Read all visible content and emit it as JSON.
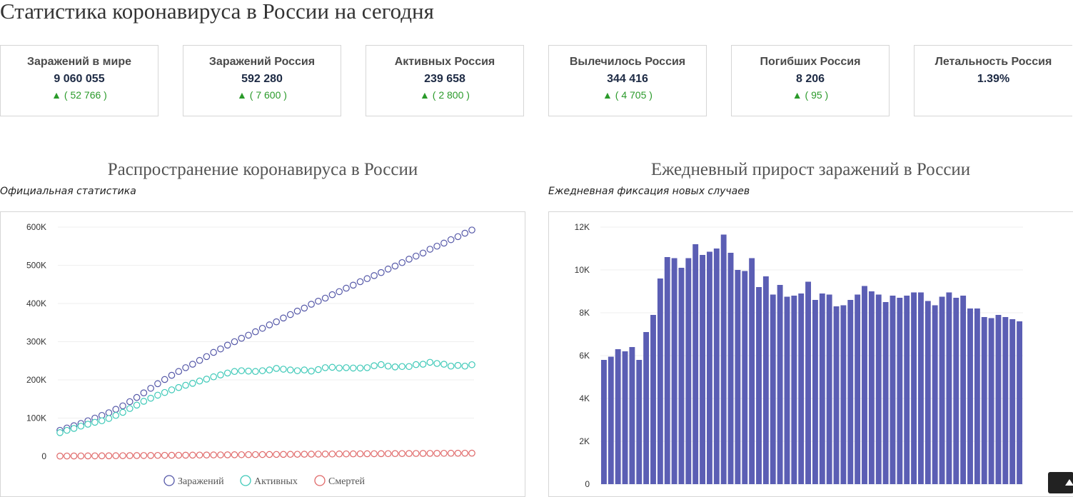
{
  "page": {
    "title": "Статистика коронавируса в России на сегодня"
  },
  "stats": [
    {
      "label": "Заражений в мире",
      "value": "9 060 055",
      "delta": "▲ ( 52 766 )"
    },
    {
      "label": "Заражений Россия",
      "value": "592 280",
      "delta": "▲ ( 7 600 )"
    },
    {
      "label": "Активных Россия",
      "value": "239 658",
      "delta": "▲ ( 2 800 )"
    },
    {
      "label": "Вылечилось Россия",
      "value": "344 416",
      "delta": "▲ ( 4 705 )"
    },
    {
      "label": "Погибших Россия",
      "value": "8 206",
      "delta": "▲ ( 95 )"
    },
    {
      "label": "Летальность Россия",
      "value": "1.39%",
      "delta": ""
    }
  ],
  "charts": {
    "spread": {
      "title": "Распространение коронавируса в России",
      "subtitle": "Официальная статистика"
    },
    "daily": {
      "title": "Ежедневный прирост заражений в России",
      "subtitle": "Ежедневная фиксация новых случаев"
    }
  },
  "chart_data": [
    {
      "type": "scatter",
      "title": "Распространение коронавируса в России",
      "subtitle": "Официальная статистика",
      "ylim": [
        0,
        600000
      ],
      "yticks": [
        0,
        100000,
        200000,
        300000,
        400000,
        500000,
        600000
      ],
      "ytick_labels": [
        "0",
        "100K",
        "200K",
        "300K",
        "400K",
        "500K",
        "600K"
      ],
      "grid": true,
      "legend_position": "bottom",
      "series": [
        {
          "name": "Заражений",
          "color": "#5558a8",
          "values": [
            68000,
            74000,
            80000,
            86000,
            93000,
            100000,
            107000,
            114000,
            123000,
            132000,
            143000,
            154000,
            166000,
            178000,
            190000,
            201000,
            212000,
            222000,
            232000,
            241000,
            251000,
            261000,
            272000,
            281000,
            291000,
            300000,
            309000,
            317000,
            326000,
            335000,
            344000,
            352000,
            362000,
            371000,
            380000,
            388000,
            398000,
            406000,
            414000,
            423000,
            431000,
            440000,
            448000,
            457000,
            465000,
            473000,
            481000,
            490000,
            498000,
            507000,
            516000,
            524000,
            532000,
            542000,
            550000,
            558000,
            567000,
            575000,
            584000,
            592280
          ]
        },
        {
          "name": "Активных",
          "color": "#3ec9b8",
          "values": [
            62000,
            68000,
            73000,
            79000,
            84000,
            89000,
            93000,
            99000,
            107000,
            115000,
            125000,
            134000,
            144000,
            152000,
            160000,
            167000,
            174000,
            180000,
            186000,
            191000,
            197000,
            202000,
            208000,
            213000,
            218000,
            222000,
            224000,
            223000,
            222000,
            224000,
            226000,
            230000,
            228000,
            226000,
            224000,
            226000,
            223000,
            227000,
            232000,
            233000,
            231000,
            232000,
            231000,
            231000,
            232000,
            237000,
            240000,
            236000,
            234000,
            235000,
            235000,
            240000,
            241000,
            246000,
            243000,
            241000,
            236000,
            238000,
            236000,
            239658
          ]
        },
        {
          "name": "Смертей",
          "color": "#e06868",
          "values": [
            600,
            700,
            800,
            900,
            1000,
            1100,
            1200,
            1300,
            1450,
            1600,
            1750,
            1900,
            2050,
            2200,
            2350,
            2500,
            2650,
            2800,
            2950,
            3100,
            3250,
            3400,
            3550,
            3700,
            3850,
            4000,
            4150,
            4300,
            4450,
            4600,
            4750,
            4900,
            5050,
            5200,
            5350,
            5500,
            5650,
            5780,
            5900,
            6020,
            6140,
            6260,
            6380,
            6500,
            6620,
            6740,
            6860,
            6980,
            7100,
            7220,
            7340,
            7460,
            7580,
            7700,
            7800,
            7900,
            7990,
            8080,
            8150,
            8206
          ]
        }
      ]
    },
    {
      "type": "bar",
      "title": "Ежедневный прирост заражений в России",
      "subtitle": "Ежедневная фиксация новых случаев",
      "ylim": [
        0,
        12000
      ],
      "yticks": [
        0,
        2000,
        4000,
        6000,
        8000,
        10000,
        12000
      ],
      "ytick_labels": [
        "0",
        "2K",
        "4K",
        "6K",
        "8K",
        "10K",
        "12K"
      ],
      "grid": true,
      "color": "#5b5eb4",
      "values": [
        5800,
        5950,
        6300,
        6200,
        6400,
        5800,
        7100,
        7900,
        9600,
        10600,
        10550,
        10100,
        10550,
        11200,
        10700,
        10850,
        11000,
        11650,
        10800,
        10000,
        9950,
        10550,
        9200,
        9700,
        8850,
        9300,
        8750,
        8800,
        8900,
        9450,
        8600,
        8900,
        8850,
        8300,
        8350,
        8600,
        8850,
        9250,
        9000,
        8850,
        8500,
        8800,
        8700,
        8800,
        8950,
        8950,
        8550,
        8350,
        8750,
        8950,
        8700,
        8800,
        8200,
        8200,
        7800,
        7750,
        7900,
        7800,
        7700,
        7600
      ]
    }
  ]
}
